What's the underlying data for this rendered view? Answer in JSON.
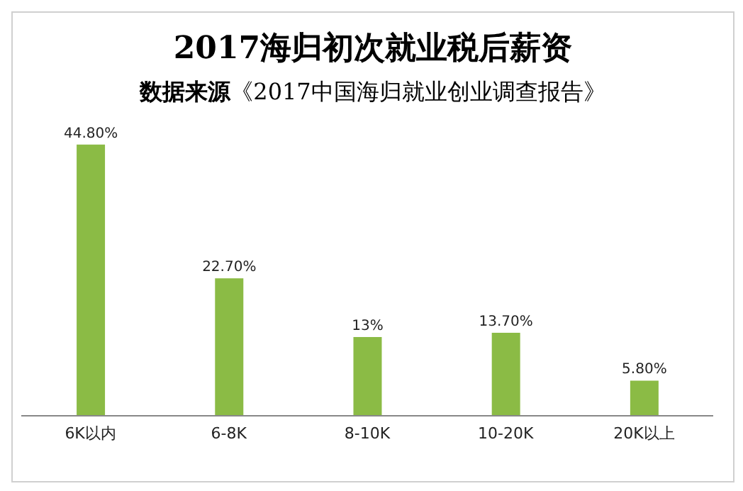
{
  "chart_data": {
    "type": "bar",
    "title": "2017海归初次就业税后薪资",
    "subtitle": "数据来源《2017中国海归就业创业调查报告》",
    "categories": [
      "6K以内",
      "6-8K",
      "8-10K",
      "10-20K",
      "20K以上"
    ],
    "values": [
      44.8,
      22.7,
      13,
      13.7,
      5.8
    ],
    "value_labels": [
      "44.80%",
      "22.70%",
      "13%",
      "13.70%",
      "5.80%"
    ],
    "color": "#8bbb45"
  }
}
